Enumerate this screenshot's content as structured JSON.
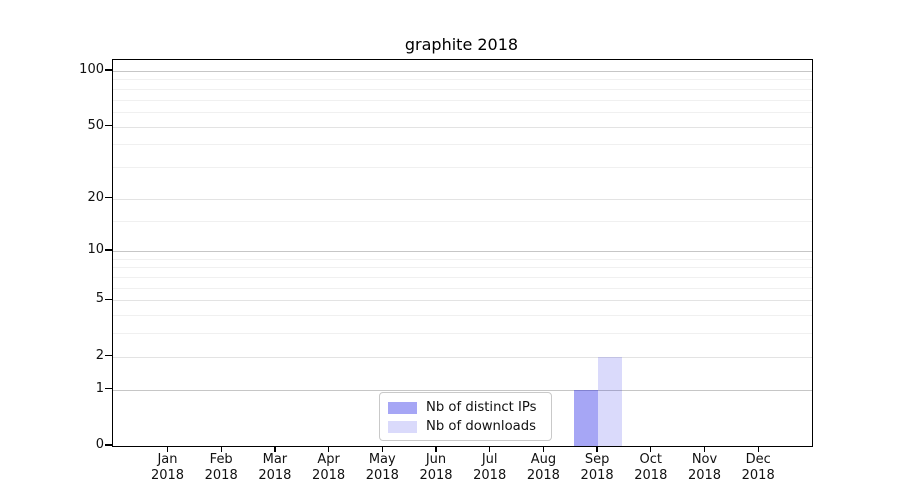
{
  "chart_data": {
    "type": "bar",
    "title": "graphite 2018",
    "x_categories": [
      "Jan",
      "Feb",
      "Mar",
      "Apr",
      "May",
      "Jun",
      "Jul",
      "Aug",
      "Sep",
      "Oct",
      "Nov",
      "Dec"
    ],
    "x_sub_label": "2018",
    "series": [
      {
        "name": "Nb of distinct IPs",
        "values": [
          0,
          0,
          0,
          0,
          0,
          0,
          0,
          0,
          1,
          0,
          0,
          0
        ],
        "color_hex": "#a6a6f5",
        "css_color": "rgba(8,8,228,0.36)"
      },
      {
        "name": "Nb of downloads",
        "values": [
          0,
          0,
          0,
          0,
          0,
          0,
          0,
          0,
          2,
          0,
          0,
          0
        ],
        "color_hex": "#dbdbfa",
        "css_color": "rgba(8,8,228,0.15)"
      }
    ],
    "y_axis": {
      "scale": "log1p",
      "ticks": [
        0,
        1,
        2,
        5,
        10,
        20,
        50,
        100
      ],
      "minor_ticks": [
        3,
        4,
        6,
        7,
        8,
        9,
        15,
        30,
        40,
        60,
        70,
        80,
        90
      ],
      "range": [
        0,
        113
      ]
    },
    "x_axis": {
      "label_rows": 2
    },
    "legend": {
      "entries": [
        "Nb of distinct IPs",
        "Nb of downloads"
      ],
      "position": "lower center-left"
    },
    "grid": {
      "orientation": "horizontal",
      "decade_color": "#c6c6c6",
      "major_color": "#e3e3e3",
      "minor_color": "#f0f0f0"
    },
    "frame_color": "#000000",
    "background_color": "#ffffff"
  }
}
